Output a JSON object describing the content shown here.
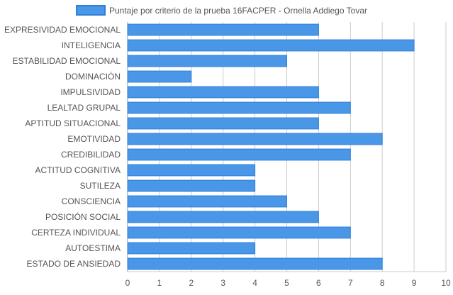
{
  "chart_data": {
    "type": "bar",
    "orientation": "horizontal",
    "categories": [
      "EXPRESIVIDAD EMOCIONAL",
      "INTELIGENCIA",
      "ESTABILIDAD EMOCIONAL",
      "DOMINACIÓN",
      "IMPULSIVIDAD",
      "LEALTAD GRUPAL",
      "APTITUD SITUACIONAL",
      "EMOTIVIDAD",
      "CREDIBILIDAD",
      "ACTITUD COGNITIVA",
      "SUTILEZA",
      "CONSCIENCIA",
      "POSICIÓN SOCIAL",
      "CERTEZA INDIVIDUAL",
      "AUTOESTIMA",
      "ESTADO DE ANSIEDAD"
    ],
    "series": [
      {
        "name": "Puntaje por criterio de la prueba 16FACPER - Ornella Addiego Tovar",
        "values": [
          6,
          9,
          5,
          2,
          6,
          7,
          6,
          8,
          7,
          4,
          4,
          5,
          6,
          7,
          4,
          8
        ]
      }
    ],
    "xlim": [
      0,
      10
    ],
    "xticks": [
      "0",
      "1",
      "2",
      "3",
      "4",
      "5",
      "6",
      "7",
      "8",
      "9",
      "10"
    ],
    "grid": true,
    "legend_position": "top",
    "colors": {
      "bar_fill": "#4a97e8",
      "bar_stroke": "#2f7fd6",
      "grid": "#cccccc",
      "text": "#555555"
    }
  }
}
